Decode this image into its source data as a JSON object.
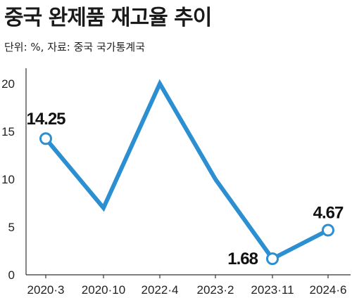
{
  "header": {
    "title": "중국 완제품 재고율 추이",
    "subtitle": "단위: %, 자료: 중국 국가통계국"
  },
  "colors": {
    "line": "#2b8fd1",
    "marker_fill": "#ffffff",
    "axis": "#333333"
  },
  "chart_data": {
    "type": "line",
    "x": [
      "2020·3",
      "2020·10",
      "2022·4",
      "2023·2",
      "2023·11",
      "2024·6"
    ],
    "series": [
      {
        "values": [
          14.25,
          7.0,
          20.0,
          10.0,
          1.68,
          4.67
        ]
      }
    ],
    "data_labels": [
      {
        "x": "2020·3",
        "text": "14.25"
      },
      {
        "x": "2023·11",
        "text": "1.68"
      },
      {
        "x": "2024·6",
        "text": "4.67"
      }
    ],
    "ylim": [
      0,
      20
    ],
    "yticks": [
      0,
      5,
      10,
      15,
      20
    ],
    "grid": false,
    "legend": "none"
  }
}
